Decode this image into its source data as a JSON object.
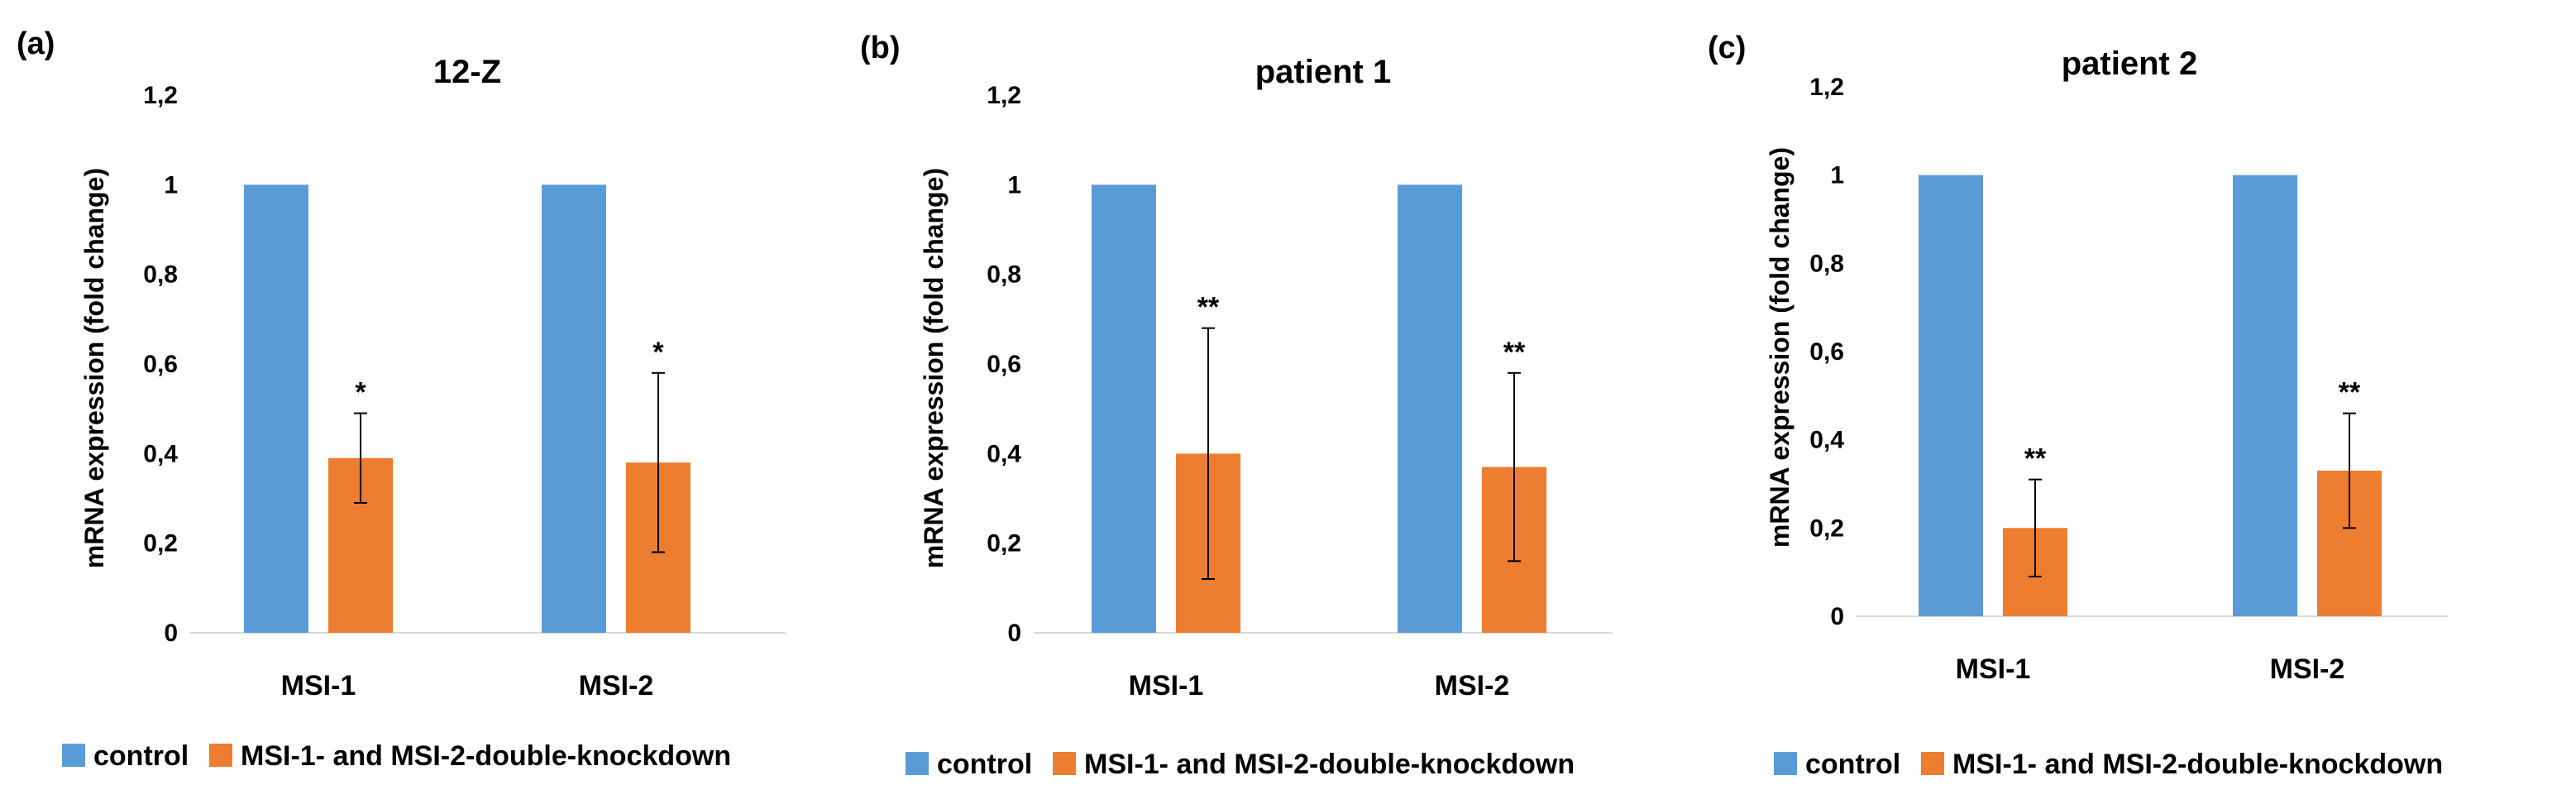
{
  "chart_data": [
    {
      "type": "bar",
      "panel_label": "(a)",
      "title": "12-Z",
      "ylabel": "mRNA expression (fold change)",
      "ylim": [
        0,
        1.2
      ],
      "yticks": [
        "0",
        "0,2",
        "0,4",
        "0,6",
        "0,8",
        "1",
        "1,2"
      ],
      "categories": [
        "MSI-1",
        "MSI-2"
      ],
      "series": [
        {
          "name": "control",
          "color": "#5B9BD5",
          "values": [
            1.0,
            1.0
          ],
          "errors": [
            null,
            null
          ]
        },
        {
          "name": "MSI-1- and MSI-2-double-knockdown",
          "color": "#ED7D31",
          "values": [
            0.39,
            0.38
          ],
          "errors": [
            0.1,
            0.2
          ]
        }
      ],
      "significance": [
        "*",
        "*"
      ],
      "legend": "bottom"
    },
    {
      "type": "bar",
      "panel_label": "(b)",
      "title": "patient 1",
      "ylabel": "mRNA expression (fold change)",
      "ylim": [
        0,
        1.2
      ],
      "yticks": [
        "0",
        "0,2",
        "0,4",
        "0,6",
        "0,8",
        "1",
        "1,2"
      ],
      "categories": [
        "MSI-1",
        "MSI-2"
      ],
      "series": [
        {
          "name": "control",
          "color": "#5B9BD5",
          "values": [
            1.0,
            1.0
          ],
          "errors": [
            null,
            null
          ]
        },
        {
          "name": "MSI-1- and MSI-2-double-knockdown",
          "color": "#ED7D31",
          "values": [
            0.4,
            0.37
          ],
          "errors": [
            0.28,
            0.21
          ]
        }
      ],
      "significance": [
        "**",
        "**"
      ],
      "legend": "bottom"
    },
    {
      "type": "bar",
      "panel_label": "(c)",
      "title": "patient 2",
      "ylabel": "mRNA expression (fold change)",
      "ylim": [
        0,
        1.2
      ],
      "yticks": [
        "0",
        "0,2",
        "0,4",
        "0,6",
        "0,8",
        "1",
        "1,2"
      ],
      "categories": [
        "MSI-1",
        "MSI-2"
      ],
      "series": [
        {
          "name": "control",
          "color": "#5B9BD5",
          "values": [
            1.0,
            1.0
          ],
          "errors": [
            null,
            null
          ]
        },
        {
          "name": "MSI-1- and MSI-2-double-knockdown",
          "color": "#ED7D31",
          "values": [
            0.2,
            0.33
          ],
          "errors": [
            0.11,
            0.13
          ]
        }
      ],
      "significance": [
        "**",
        "**"
      ],
      "legend": "bottom"
    }
  ]
}
